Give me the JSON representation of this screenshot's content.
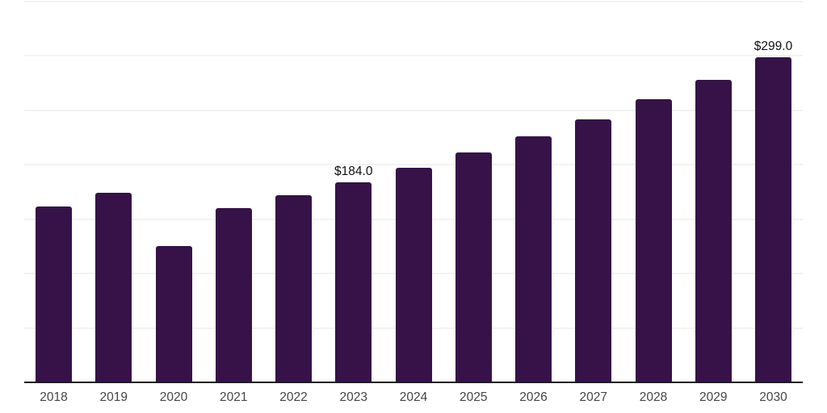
{
  "chart_data": {
    "type": "bar",
    "categories": [
      "2018",
      "2019",
      "2020",
      "2021",
      "2022",
      "2023",
      "2024",
      "2025",
      "2026",
      "2027",
      "2028",
      "2029",
      "2030"
    ],
    "values": [
      162,
      174,
      125,
      160,
      172,
      184,
      197,
      211,
      226,
      242,
      260,
      278,
      299
    ],
    "data_labels": {
      "2023": "$184.0",
      "2030": "$299.0"
    },
    "xlabel": "",
    "ylabel": "",
    "ylim": [
      0,
      350
    ],
    "gridline_step": 50,
    "grid": "horizontal",
    "legend_position": "none"
  },
  "colors": {
    "bar": "#361249",
    "axis_line": "#1c1c1c",
    "gridline": "#f3f3f5",
    "tick_label": "#454545",
    "data_label": "#111111",
    "background": "#ffffff"
  }
}
